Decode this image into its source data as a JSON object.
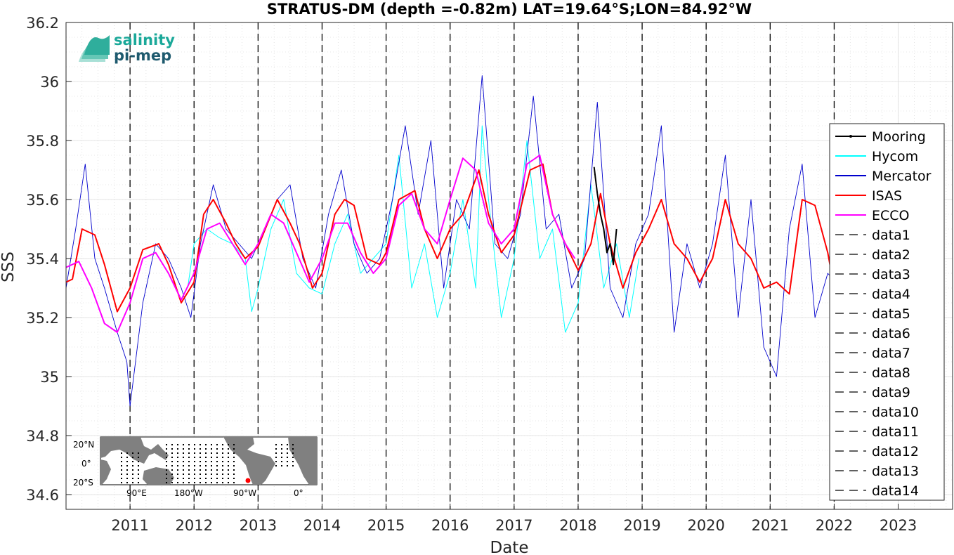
{
  "chart_data": {
    "type": "line",
    "title": "STRATUS-DM (depth =-0.82m) LAT=19.64°S;LON=84.92°W",
    "xlabel": "Date",
    "ylabel": "SSS",
    "xlim": [
      2010.0,
      2023.85
    ],
    "ylim": [
      34.55,
      36.2
    ],
    "yticks": [
      34.6,
      34.8,
      35,
      35.2,
      35.4,
      35.6,
      35.8,
      36,
      36.2
    ],
    "ytick_labels": [
      "34.6",
      "34.8",
      "35",
      "35.2",
      "35.4",
      "35.6",
      "35.8",
      "36",
      "36.2"
    ],
    "xticks": [
      2011,
      2012,
      2013,
      2014,
      2015,
      2016,
      2017,
      2018,
      2019,
      2020,
      2021,
      2022,
      2023
    ],
    "xtick_labels": [
      "2011",
      "2012",
      "2013",
      "2014",
      "2015",
      "2016",
      "2017",
      "2018",
      "2019",
      "2020",
      "2021",
      "2022",
      "2023"
    ],
    "grid": true,
    "legend_position": "right",
    "vlines": [
      2011,
      2012,
      2013,
      2014,
      2015,
      2016,
      2017,
      2018,
      2019,
      2020,
      2021,
      2022
    ],
    "series": [
      {
        "name": "Mooring",
        "color": "#000000",
        "style": "solid-marker",
        "x": [
          2018.25,
          2018.3,
          2018.35,
          2018.4,
          2018.45,
          2018.5,
          2018.55,
          2018.6
        ],
        "y": [
          35.71,
          35.62,
          35.55,
          35.5,
          35.42,
          35.45,
          35.38,
          35.5
        ]
      },
      {
        "name": "Hycom",
        "color": "#00ffff",
        "style": "solid",
        "x": [
          2011.9,
          2012.0,
          2012.2,
          2012.4,
          2012.6,
          2012.8,
          2012.9,
          2013.0,
          2013.2,
          2013.4,
          2013.6,
          2013.8,
          2014.0,
          2014.2,
          2014.4,
          2014.6,
          2014.8,
          2015.0,
          2015.2,
          2015.4,
          2015.6,
          2015.8,
          2016.0,
          2016.2,
          2016.4,
          2016.5,
          2016.6,
          2016.8,
          2017.0,
          2017.2,
          2017.4,
          2017.6,
          2017.8,
          2018.0,
          2018.2,
          2018.4,
          2018.6,
          2018.8,
          2018.95
        ],
        "y": [
          35.3,
          35.45,
          35.5,
          35.47,
          35.45,
          35.4,
          35.22,
          35.3,
          35.5,
          35.6,
          35.35,
          35.3,
          35.28,
          35.45,
          35.55,
          35.35,
          35.4,
          35.45,
          35.75,
          35.3,
          35.45,
          35.2,
          35.35,
          35.6,
          35.3,
          35.85,
          35.6,
          35.2,
          35.4,
          35.8,
          35.4,
          35.5,
          35.15,
          35.25,
          35.65,
          35.3,
          35.45,
          35.2,
          35.4
        ]
      },
      {
        "name": "Mercator",
        "color": "#0000cd",
        "style": "solid",
        "x": [
          2010.0,
          2010.15,
          2010.3,
          2010.45,
          2010.6,
          2010.8,
          2010.95,
          2011.0,
          2011.2,
          2011.4,
          2011.6,
          2011.8,
          2011.95,
          2012.1,
          2012.3,
          2012.5,
          2012.7,
          2012.9,
          2013.1,
          2013.3,
          2013.5,
          2013.7,
          2013.9,
          2014.1,
          2014.3,
          2014.5,
          2014.7,
          2014.9,
          2015.1,
          2015.3,
          2015.5,
          2015.7,
          2015.9,
          2016.1,
          2016.3,
          2016.5,
          2016.7,
          2016.9,
          2017.1,
          2017.3,
          2017.5,
          2017.7,
          2017.9,
          2018.1,
          2018.3,
          2018.5,
          2018.7,
          2018.9,
          2019.1,
          2019.3,
          2019.5,
          2019.7,
          2019.9,
          2020.1,
          2020.3,
          2020.5,
          2020.7,
          2020.9,
          2021.1,
          2021.3,
          2021.5,
          2021.7,
          2021.9,
          2022.1
        ],
        "y": [
          35.3,
          35.5,
          35.72,
          35.4,
          35.3,
          35.15,
          35.05,
          34.9,
          35.25,
          35.45,
          35.4,
          35.3,
          35.2,
          35.45,
          35.65,
          35.5,
          35.45,
          35.4,
          35.5,
          35.6,
          35.65,
          35.4,
          35.3,
          35.55,
          35.7,
          35.45,
          35.35,
          35.4,
          35.6,
          35.85,
          35.55,
          35.8,
          35.3,
          35.6,
          35.5,
          36.02,
          35.45,
          35.4,
          35.55,
          35.95,
          35.5,
          35.55,
          35.3,
          35.4,
          35.93,
          35.3,
          35.2,
          35.45,
          35.55,
          35.85,
          35.15,
          35.45,
          35.3,
          35.45,
          35.75,
          35.2,
          35.6,
          35.1,
          35.0,
          35.5,
          35.72,
          35.2,
          35.35,
          35.3
        ]
      },
      {
        "name": "ISAS",
        "color": "#ff0000",
        "style": "solid",
        "x": [
          2010.0,
          2010.1,
          2010.25,
          2010.45,
          2010.6,
          2010.8,
          2011.0,
          2011.2,
          2011.45,
          2011.6,
          2011.8,
          2012.0,
          2012.15,
          2012.3,
          2012.5,
          2012.65,
          2012.8,
          2013.0,
          2013.15,
          2013.3,
          2013.5,
          2013.65,
          2013.85,
          2014.0,
          2014.2,
          2014.35,
          2014.5,
          2014.7,
          2014.9,
          2015.0,
          2015.2,
          2015.45,
          2015.6,
          2015.8,
          2016.0,
          2016.2,
          2016.45,
          2016.6,
          2016.8,
          2017.0,
          2017.25,
          2017.45,
          2017.6,
          2017.8,
          2018.0,
          2018.2,
          2018.35,
          2018.5,
          2018.7,
          2018.9,
          2019.1,
          2019.3,
          2019.5,
          2019.7,
          2019.9,
          2020.1,
          2020.3,
          2020.5,
          2020.7,
          2020.9,
          2021.1,
          2021.3,
          2021.5,
          2021.7,
          2021.9,
          2022.0
        ],
        "y": [
          35.32,
          35.33,
          35.5,
          35.48,
          35.38,
          35.22,
          35.3,
          35.43,
          35.45,
          35.38,
          35.25,
          35.32,
          35.55,
          35.6,
          35.52,
          35.45,
          35.4,
          35.44,
          35.52,
          35.6,
          35.52,
          35.45,
          35.3,
          35.35,
          35.55,
          35.6,
          35.58,
          35.4,
          35.38,
          35.42,
          35.6,
          35.63,
          35.5,
          35.4,
          35.5,
          35.55,
          35.7,
          35.55,
          35.42,
          35.48,
          35.7,
          35.72,
          35.55,
          35.45,
          35.36,
          35.45,
          35.62,
          35.45,
          35.3,
          35.42,
          35.5,
          35.6,
          35.45,
          35.4,
          35.32,
          35.4,
          35.6,
          35.45,
          35.4,
          35.3,
          35.32,
          35.28,
          35.6,
          35.58,
          35.42,
          35.3
        ]
      },
      {
        "name": "ECCO",
        "color": "#ff00ff",
        "style": "solid",
        "x": [
          2010.0,
          2010.2,
          2010.4,
          2010.6,
          2010.8,
          2011.0,
          2011.2,
          2011.4,
          2011.6,
          2011.8,
          2012.0,
          2012.2,
          2012.4,
          2012.6,
          2012.8,
          2013.0,
          2013.2,
          2013.4,
          2013.6,
          2013.8,
          2014.0,
          2014.2,
          2014.4,
          2014.6,
          2014.8,
          2015.0,
          2015.2,
          2015.4,
          2015.6,
          2015.8,
          2016.0,
          2016.2,
          2016.4,
          2016.6,
          2016.8,
          2017.0,
          2017.2,
          2017.4,
          2017.6,
          2017.8,
          2017.95
        ],
        "y": [
          35.37,
          35.39,
          35.3,
          35.18,
          35.15,
          35.25,
          35.4,
          35.42,
          35.35,
          35.26,
          35.35,
          35.5,
          35.52,
          35.45,
          35.38,
          35.45,
          35.55,
          35.52,
          35.42,
          35.32,
          35.4,
          35.52,
          35.52,
          35.42,
          35.35,
          35.4,
          35.58,
          35.62,
          35.5,
          35.45,
          35.6,
          35.74,
          35.7,
          35.52,
          35.45,
          35.5,
          35.72,
          35.75,
          35.55,
          35.45,
          35.4
        ]
      },
      {
        "name": "data1",
        "color": "#000000",
        "style": "dashed"
      },
      {
        "name": "data2",
        "color": "#000000",
        "style": "dashed"
      },
      {
        "name": "data3",
        "color": "#000000",
        "style": "dashed"
      },
      {
        "name": "data4",
        "color": "#000000",
        "style": "dashed"
      },
      {
        "name": "data5",
        "color": "#000000",
        "style": "dashed"
      },
      {
        "name": "data6",
        "color": "#000000",
        "style": "dashed"
      },
      {
        "name": "data7",
        "color": "#000000",
        "style": "dashed"
      },
      {
        "name": "data8",
        "color": "#000000",
        "style": "dashed"
      },
      {
        "name": "data9",
        "color": "#000000",
        "style": "dashed"
      },
      {
        "name": "data10",
        "color": "#000000",
        "style": "dashed"
      },
      {
        "name": "data11",
        "color": "#000000",
        "style": "dashed"
      },
      {
        "name": "data12",
        "color": "#000000",
        "style": "dashed"
      },
      {
        "name": "data13",
        "color": "#000000",
        "style": "dashed"
      },
      {
        "name": "data14",
        "color": "#000000",
        "style": "dashed"
      }
    ]
  },
  "logo": {
    "line1": "salinity",
    "line2": "pi-mep",
    "color1": "#1aa899",
    "color2": "#1e5a6e"
  },
  "inset_map": {
    "lat_labels": [
      "20°N",
      "0°",
      "20°S"
    ],
    "lon_labels": [
      "90°E",
      "180°W",
      "90°W",
      "0°"
    ],
    "marker_color": "#ff0000"
  }
}
